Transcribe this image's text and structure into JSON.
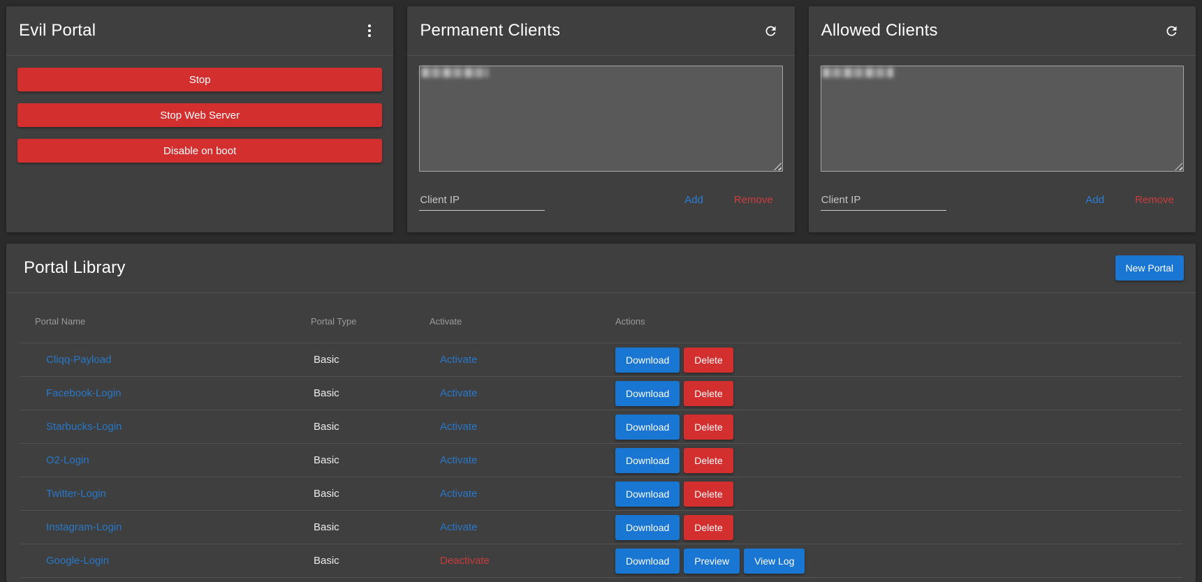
{
  "colors": {
    "page_background": "#2b2b2b",
    "card_background": "#3f3f3f",
    "accent_red": "#d32f2f",
    "accent_blue": "#1976d2",
    "link_blue": "#2878c8",
    "link_red": "#cc3c3c"
  },
  "evil_portal": {
    "title": "Evil Portal",
    "menu_icon": "kebab-vertical-menu",
    "buttons": [
      {
        "label": "Stop"
      },
      {
        "label": "Stop Web Server"
      },
      {
        "label": "Disable on boot"
      }
    ]
  },
  "permanent_clients": {
    "title": "Permanent Clients",
    "refresh_icon": "refresh",
    "list_redacted": true,
    "client_ip_placeholder": "Client IP",
    "add_label": "Add",
    "remove_label": "Remove"
  },
  "allowed_clients": {
    "title": "Allowed Clients",
    "refresh_icon": "refresh",
    "list_redacted": true,
    "client_ip_placeholder": "Client IP",
    "add_label": "Add",
    "remove_label": "Remove"
  },
  "portal_library": {
    "title": "Portal Library",
    "new_portal_label": "New Portal",
    "table": {
      "headers": [
        "Portal Name",
        "Portal Type",
        "Activate",
        "Actions"
      ],
      "rows": [
        {
          "name": "Cliqq-Payload",
          "type": "Basic",
          "activate_label": "Activate",
          "active": false,
          "actions": [
            {
              "label": "Download",
              "style": "primary"
            },
            {
              "label": "Delete",
              "style": "danger"
            }
          ]
        },
        {
          "name": "Facebook-Login",
          "type": "Basic",
          "activate_label": "Activate",
          "active": false,
          "actions": [
            {
              "label": "Download",
              "style": "primary"
            },
            {
              "label": "Delete",
              "style": "danger"
            }
          ]
        },
        {
          "name": "Starbucks-Login",
          "type": "Basic",
          "activate_label": "Activate",
          "active": false,
          "actions": [
            {
              "label": "Download",
              "style": "primary"
            },
            {
              "label": "Delete",
              "style": "danger"
            }
          ]
        },
        {
          "name": "O2-Login",
          "type": "Basic",
          "activate_label": "Activate",
          "active": false,
          "actions": [
            {
              "label": "Download",
              "style": "primary"
            },
            {
              "label": "Delete",
              "style": "danger"
            }
          ]
        },
        {
          "name": "Twitter-Login",
          "type": "Basic",
          "activate_label": "Activate",
          "active": false,
          "actions": [
            {
              "label": "Download",
              "style": "primary"
            },
            {
              "label": "Delete",
              "style": "danger"
            }
          ]
        },
        {
          "name": "Instagram-Login",
          "type": "Basic",
          "activate_label": "Activate",
          "active": false,
          "actions": [
            {
              "label": "Download",
              "style": "primary"
            },
            {
              "label": "Delete",
              "style": "danger"
            }
          ]
        },
        {
          "name": "Google-Login",
          "type": "Basic",
          "activate_label": "Deactivate",
          "active": true,
          "actions": [
            {
              "label": "Download",
              "style": "primary"
            },
            {
              "label": "Preview",
              "style": "primary"
            },
            {
              "label": "View Log",
              "style": "primary"
            }
          ]
        }
      ]
    }
  }
}
